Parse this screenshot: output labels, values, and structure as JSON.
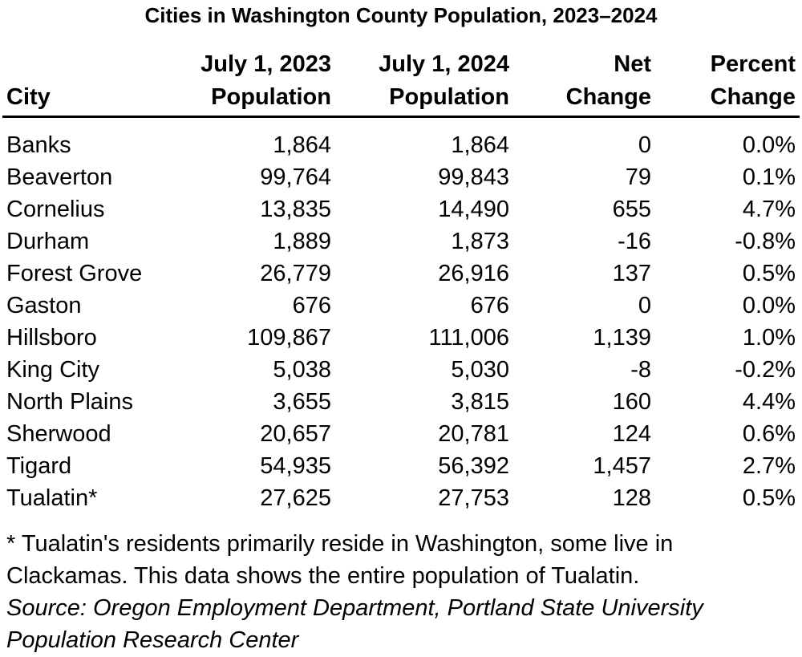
{
  "title": "Cities in Washington County Population, 2023–2024",
  "headers": {
    "city": "City",
    "pop2023_line1": "July 1, 2023",
    "pop2023_line2": "Population",
    "pop2024_line1": "July 1, 2024",
    "pop2024_line2": "Population",
    "net_line1": "Net",
    "net_line2": "Change",
    "pct_line1": "Percent",
    "pct_line2": "Change"
  },
  "rows": [
    [
      "Banks",
      "1,864",
      "1,864",
      "0",
      "0.0%"
    ],
    [
      "Beaverton",
      "99,764",
      "99,843",
      "79",
      "0.1%"
    ],
    [
      "Cornelius",
      "13,835",
      "14,490",
      "655",
      "4.7%"
    ],
    [
      "Durham",
      "1,889",
      "1,873",
      "-16",
      "-0.8%"
    ],
    [
      "Forest Grove",
      "26,779",
      "26,916",
      "137",
      "0.5%"
    ],
    [
      "Gaston",
      "676",
      "676",
      "0",
      "0.0%"
    ],
    [
      "Hillsboro",
      "109,867",
      "111,006",
      "1,139",
      "1.0%"
    ],
    [
      "King City",
      "5,038",
      "5,030",
      "-8",
      "-0.2%"
    ],
    [
      "North Plains",
      "3,655",
      "3,815",
      "160",
      "4.4%"
    ],
    [
      "Sherwood",
      "20,657",
      "20,781",
      "124",
      "0.6%"
    ],
    [
      "Tigard",
      "54,935",
      "56,392",
      "1,457",
      "2.7%"
    ],
    [
      "Tualatin*",
      "27,625",
      "27,753",
      "128",
      "0.5%"
    ]
  ],
  "footnote": {
    "line1": "* Tualatin's residents primarily reside in Washington, some live in",
    "line2": "Clackamas. This data shows the entire population of Tualatin.",
    "source1": "Source: Oregon Employment Department, Portland State University",
    "source2": "Population Research Center"
  }
}
